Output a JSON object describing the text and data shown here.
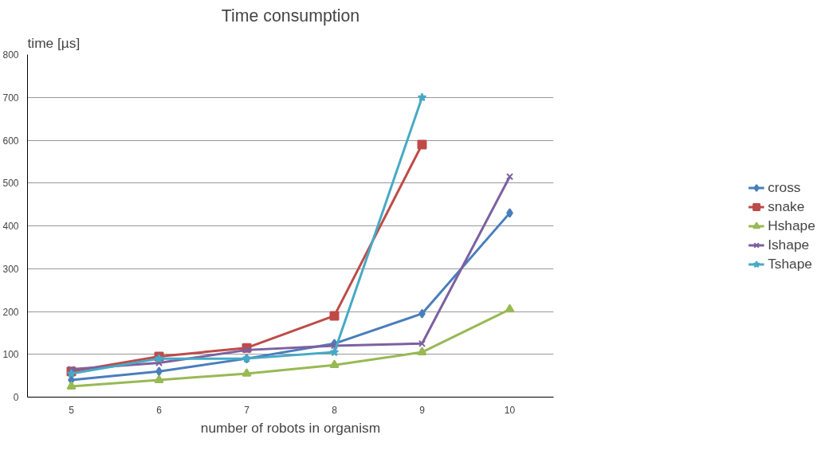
{
  "chart_data": {
    "type": "line",
    "title": "Time consumption",
    "xlabel": "number of robots in organism",
    "ylabel": "time [µs]",
    "categories": [
      "5",
      "6",
      "7",
      "8",
      "9",
      "10"
    ],
    "ylim": [
      0,
      800
    ],
    "yticks": [
      0,
      100,
      200,
      300,
      400,
      500,
      600,
      700,
      800
    ],
    "grid": "y",
    "legend": "right",
    "series": [
      {
        "name": "cross",
        "color": "#4a7ebb",
        "marker": "diamond",
        "values": [
          40,
          60,
          90,
          125,
          195,
          430
        ]
      },
      {
        "name": "snake",
        "color": "#be4b48",
        "marker": "square",
        "values": [
          60,
          95,
          115,
          190,
          590,
          null
        ]
      },
      {
        "name": "Hshape",
        "color": "#98b954",
        "marker": "triangle",
        "values": [
          25,
          40,
          55,
          75,
          105,
          205
        ]
      },
      {
        "name": "Ishape",
        "color": "#7d60a0",
        "marker": "cross",
        "values": [
          65,
          80,
          110,
          120,
          125,
          515
        ]
      },
      {
        "name": "Tshape",
        "color": "#46aac5",
        "marker": "star",
        "values": [
          55,
          90,
          90,
          105,
          700,
          null
        ]
      }
    ]
  }
}
